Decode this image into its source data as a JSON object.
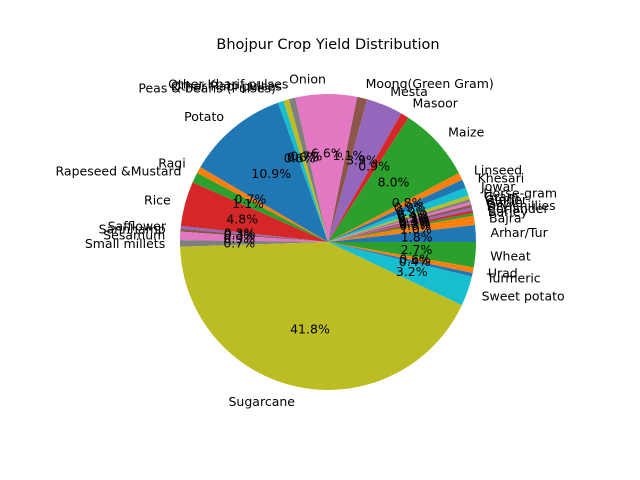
{
  "chart_data": {
    "type": "pie",
    "title": "Bhojpur Crop Yield Distribution",
    "start_angle_deg": 0,
    "direction": "counterclockwise",
    "categories": [
      "Arhar/Tur",
      "Bajra",
      "Barley",
      "Coriander",
      "Dry chillies",
      "Garlic",
      "Ginger",
      "Gram",
      "Horse-gram",
      "Jowar",
      "Khesari",
      "Linseed",
      "Maize",
      "Masoor",
      "Mesta",
      "Moong(Green Gram)",
      "Onion",
      "Other Kharif pulses",
      "Other Rabi pulses",
      "Peas & beans (Pulses)",
      "Potato",
      "Ragi",
      "Rapeseed &Mustard",
      "Rice",
      "Safflower",
      "Sannhamp",
      "Sesamum",
      "Small millets",
      "Sugarcane",
      "Sweet potato",
      "Turmeric",
      "Urad",
      "Wheat"
    ],
    "values": [
      1.8,
      1.0,
      0.3,
      0.3,
      0.3,
      0.3,
      0.3,
      0.3,
      0.4,
      0.9,
      0.9,
      0.8,
      8.0,
      0.9,
      3.9,
      1.1,
      6.6,
      0.7,
      0.6,
      0.6,
      10.9,
      0.7,
      1.1,
      4.8,
      0.3,
      0.3,
      0.9,
      0.7,
      41.8,
      3.2,
      0.4,
      0.6,
      2.7
    ],
    "percent_labels": [
      "1.8%",
      "1.0%",
      "0.3%",
      "0.3%",
      "0.3%",
      "0.3%",
      "0.3%",
      "0.3%",
      "0.4%",
      "0.9%",
      "0.9%",
      "0.8%",
      "8.0%",
      "0.9%",
      "3.9%",
      "1.1%",
      "6.6%",
      "0.7%",
      "0.6%",
      "0.6%",
      "10.9%",
      "0.7%",
      "1.1%",
      "4.8%",
      "0.3%",
      "0.3%",
      "0.9%",
      "0.7%",
      "41.8%",
      "3.2%",
      "0.4%",
      "0.6%",
      "2.7%"
    ],
    "colors": [
      "#1f77b4",
      "#ff7f0e",
      "#2ca02c",
      "#d62728",
      "#9467bd",
      "#8c564b",
      "#e377c2",
      "#7f7f7f",
      "#bcbd22",
      "#17becf",
      "#1f77b4",
      "#ff7f0e",
      "#2ca02c",
      "#d62728",
      "#9467bd",
      "#8c564b",
      "#e377c2",
      "#7f7f7f",
      "#bcbd22",
      "#17becf",
      "#1f77b4",
      "#ff7f0e",
      "#2ca02c",
      "#d62728",
      "#9467bd",
      "#8c564b",
      "#e377c2",
      "#7f7f7f",
      "#bcbd22",
      "#17becf",
      "#1f77b4",
      "#ff7f0e",
      "#2ca02c"
    ]
  }
}
